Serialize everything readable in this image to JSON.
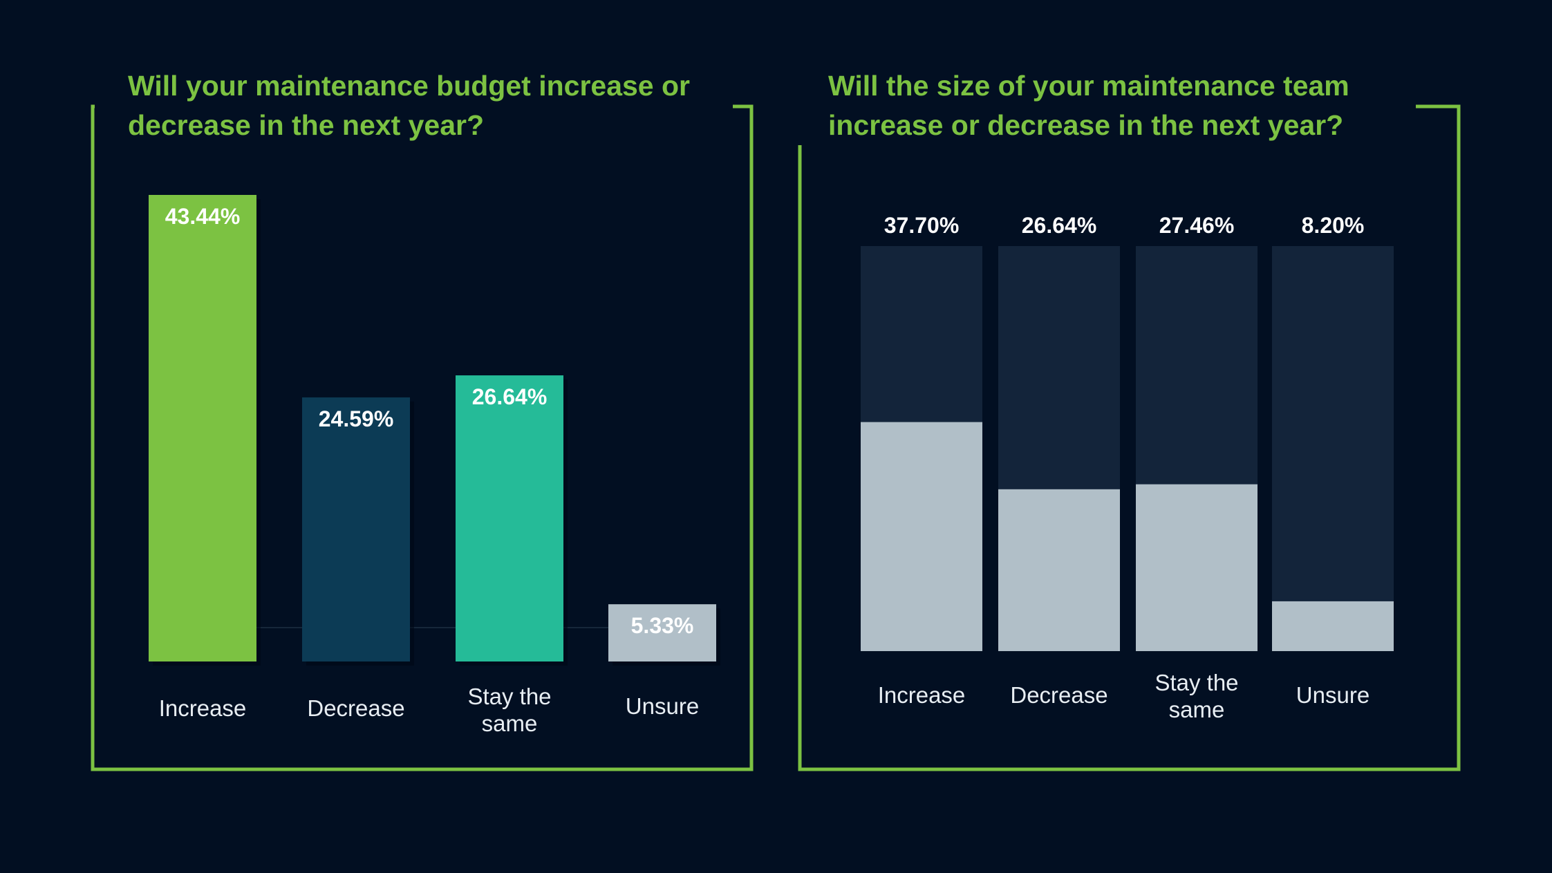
{
  "colors": {
    "background": "#020f22",
    "frame": "#7cc242",
    "title": "#7cc242",
    "label_text": "#e8eef3",
    "track": "#13243a",
    "fill_light": "#b1bfc8"
  },
  "chart_data": [
    {
      "type": "bar",
      "title": "Will your maintenance budget increase or decrease in the next year?",
      "categories": [
        "Increase",
        "Decrease",
        "Stay the same",
        "Unsure"
      ],
      "values": [
        43.44,
        24.59,
        26.64,
        5.33
      ],
      "value_labels": [
        "43.44%",
        "24.59%",
        "26.64%",
        "5.33%"
      ],
      "bar_colors": [
        "#7cc242",
        "#0c3b55",
        "#25bb98",
        "#b1bfc8"
      ],
      "ylim": [
        0,
        43.44
      ],
      "xlabel": "",
      "ylabel": "",
      "grid": false,
      "legend": "none"
    },
    {
      "type": "bar",
      "title": "Will the size of your maintenance team increase or decrease in the next year?",
      "categories": [
        "Increase",
        "Decrease",
        "Stay the same",
        "Unsure"
      ],
      "values": [
        37.7,
        26.64,
        27.46,
        8.2
      ],
      "value_labels": [
        "37.70%",
        "26.64%",
        "27.46%",
        "8.20%"
      ],
      "ylim": [
        0,
        100
      ],
      "xlabel": "",
      "ylabel": "",
      "grid": false,
      "legend": "none"
    }
  ]
}
